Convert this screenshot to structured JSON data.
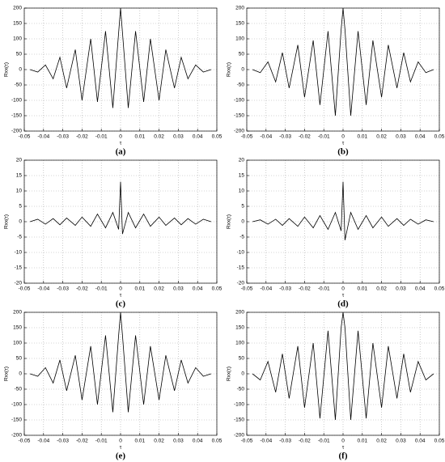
{
  "chart_data": [
    {
      "type": "line",
      "label": "(a)",
      "xlabel": "τ",
      "ylabel": "Rxx(τ)",
      "color": "#000000",
      "grid": true,
      "xlim": [
        -0.05,
        0.05
      ],
      "ylim": [
        -200,
        200
      ],
      "xticks": [
        -0.05,
        -0.04,
        -0.03,
        -0.02,
        -0.01,
        0,
        0.01,
        0.02,
        0.03,
        0.04,
        0.05
      ],
      "yticks": [
        -200,
        -150,
        -100,
        -50,
        0,
        50,
        100,
        150,
        200
      ],
      "x": [
        -0.047,
        -0.043,
        -0.039,
        -0.035,
        -0.0315,
        -0.028,
        -0.0235,
        -0.02,
        -0.0155,
        -0.012,
        -0.0078,
        -0.004,
        -0.001,
        0,
        0.001,
        0.004,
        0.0078,
        0.012,
        0.0155,
        0.02,
        0.0235,
        0.028,
        0.0315,
        0.035,
        0.039,
        0.043,
        0.047
      ],
      "values": [
        0,
        -8,
        15,
        -30,
        40,
        -60,
        65,
        -100,
        100,
        -105,
        125,
        -125,
        120,
        200,
        120,
        -125,
        125,
        -105,
        100,
        -100,
        65,
        -60,
        40,
        -30,
        15,
        -8,
        0
      ]
    },
    {
      "type": "line",
      "label": "(b)",
      "xlabel": "τ",
      "ylabel": "Rxx(τ)",
      "color": "#000000",
      "grid": true,
      "xlim": [
        -0.05,
        0.05
      ],
      "ylim": [
        -200,
        200
      ],
      "xticks": [
        -0.05,
        -0.04,
        -0.03,
        -0.02,
        -0.01,
        0,
        0.01,
        0.02,
        0.03,
        0.04,
        0.05
      ],
      "yticks": [
        -200,
        -150,
        -100,
        -50,
        0,
        50,
        100,
        150,
        200
      ],
      "x": [
        -0.047,
        -0.043,
        -0.039,
        -0.035,
        -0.0315,
        -0.028,
        -0.0235,
        -0.02,
        -0.0155,
        -0.012,
        -0.0078,
        -0.004,
        -0.001,
        0,
        0.001,
        0.004,
        0.0078,
        0.012,
        0.0155,
        0.02,
        0.0235,
        0.028,
        0.0315,
        0.035,
        0.039,
        0.043,
        0.047
      ],
      "values": [
        0,
        -10,
        25,
        -40,
        55,
        -60,
        80,
        -90,
        95,
        -115,
        125,
        -150,
        130,
        200,
        130,
        -150,
        125,
        -115,
        95,
        -90,
        80,
        -60,
        55,
        -40,
        25,
        -10,
        0
      ]
    },
    {
      "type": "line",
      "label": "(c)",
      "xlabel": "τ",
      "ylabel": "Rxx(τ)",
      "color": "#000000",
      "grid": true,
      "xlim": [
        -0.05,
        0.05
      ],
      "ylim": [
        -20,
        20
      ],
      "xticks": [
        -0.05,
        -0.04,
        -0.03,
        -0.02,
        -0.01,
        0,
        0.01,
        0.02,
        0.03,
        0.04,
        0.05
      ],
      "yticks": [
        -20,
        -15,
        -10,
        -5,
        0,
        5,
        10,
        15,
        20
      ],
      "x": [
        -0.047,
        -0.043,
        -0.039,
        -0.035,
        -0.0315,
        -0.028,
        -0.0235,
        -0.02,
        -0.0155,
        -0.012,
        -0.0078,
        -0.004,
        -0.001,
        0,
        0.001,
        0.004,
        0.0078,
        0.012,
        0.0155,
        0.02,
        0.0235,
        0.028,
        0.0315,
        0.035,
        0.039,
        0.043,
        0.047
      ],
      "values": [
        0,
        0.8,
        -0.8,
        1,
        -1,
        1.2,
        -1.2,
        1.5,
        -1.5,
        2.5,
        -2,
        3,
        -2.5,
        13,
        -4,
        3,
        -2,
        2.5,
        -1.5,
        1.5,
        -1.2,
        1.2,
        -1,
        1,
        -0.8,
        0.8,
        0
      ]
    },
    {
      "type": "line",
      "label": "(d)",
      "xlabel": "τ",
      "ylabel": "Rxx(τ)",
      "color": "#000000",
      "grid": true,
      "xlim": [
        -0.05,
        0.05
      ],
      "ylim": [
        -20,
        20
      ],
      "xticks": [
        -0.05,
        -0.04,
        -0.03,
        -0.02,
        -0.01,
        0,
        0.01,
        0.02,
        0.03,
        0.04,
        0.05
      ],
      "yticks": [
        -20,
        -15,
        -10,
        -5,
        0,
        5,
        10,
        15,
        20
      ],
      "x": [
        -0.047,
        -0.043,
        -0.039,
        -0.035,
        -0.0315,
        -0.028,
        -0.0235,
        -0.02,
        -0.0155,
        -0.012,
        -0.0078,
        -0.004,
        -0.001,
        0,
        0.001,
        0.004,
        0.0078,
        0.012,
        0.0155,
        0.02,
        0.0235,
        0.028,
        0.0315,
        0.035,
        0.039,
        0.043,
        0.047
      ],
      "values": [
        0,
        0.6,
        -0.8,
        0.8,
        -1.2,
        1,
        -1.5,
        1.5,
        -2,
        2,
        -2.5,
        3,
        -3,
        13,
        -6,
        3,
        -2.5,
        2,
        -2,
        1.5,
        -1.5,
        1,
        -1.2,
        0.8,
        -0.8,
        0.6,
        0
      ]
    },
    {
      "type": "line",
      "label": "(e)",
      "xlabel": "τ",
      "ylabel": "Rxx(τ)",
      "color": "#000000",
      "grid": true,
      "xlim": [
        -0.05,
        0.05
      ],
      "ylim": [
        -200,
        200
      ],
      "xticks": [
        -0.05,
        -0.04,
        -0.03,
        -0.02,
        -0.01,
        0,
        0.01,
        0.02,
        0.03,
        0.04,
        0.05
      ],
      "yticks": [
        -200,
        -150,
        -100,
        -50,
        0,
        50,
        100,
        150,
        200
      ],
      "x": [
        -0.047,
        -0.043,
        -0.039,
        -0.035,
        -0.0315,
        -0.028,
        -0.0235,
        -0.02,
        -0.0155,
        -0.012,
        -0.0078,
        -0.004,
        -0.001,
        0,
        0.001,
        0.004,
        0.0078,
        0.012,
        0.0155,
        0.02,
        0.0235,
        0.028,
        0.0315,
        0.035,
        0.039,
        0.043,
        0.047
      ],
      "values": [
        0,
        -8,
        20,
        -30,
        45,
        -55,
        60,
        -85,
        90,
        -100,
        125,
        -125,
        125,
        200,
        125,
        -125,
        125,
        -100,
        90,
        -85,
        60,
        -55,
        45,
        -30,
        20,
        -8,
        0
      ]
    },
    {
      "type": "line",
      "label": "(f)",
      "xlabel": "τ",
      "ylabel": "Rxx(τ)",
      "color": "#000000",
      "grid": true,
      "xlim": [
        -0.05,
        0.05
      ],
      "ylim": [
        -200,
        200
      ],
      "xticks": [
        -0.05,
        -0.04,
        -0.03,
        -0.02,
        -0.01,
        0,
        0.01,
        0.02,
        0.03,
        0.04,
        0.05
      ],
      "yticks": [
        -200,
        -150,
        -100,
        -50,
        0,
        50,
        100,
        150,
        200
      ],
      "x": [
        -0.047,
        -0.043,
        -0.039,
        -0.035,
        -0.0315,
        -0.028,
        -0.0235,
        -0.02,
        -0.0155,
        -0.012,
        -0.0078,
        -0.004,
        -0.001,
        0,
        0.001,
        0.004,
        0.0078,
        0.012,
        0.0155,
        0.02,
        0.0235,
        0.028,
        0.0315,
        0.035,
        0.039,
        0.043,
        0.047
      ],
      "values": [
        0,
        -20,
        40,
        -60,
        65,
        -80,
        90,
        -110,
        100,
        -145,
        140,
        -150,
        150,
        200,
        150,
        -150,
        140,
        -145,
        100,
        -110,
        90,
        -80,
        65,
        -60,
        40,
        -20,
        0
      ]
    }
  ]
}
